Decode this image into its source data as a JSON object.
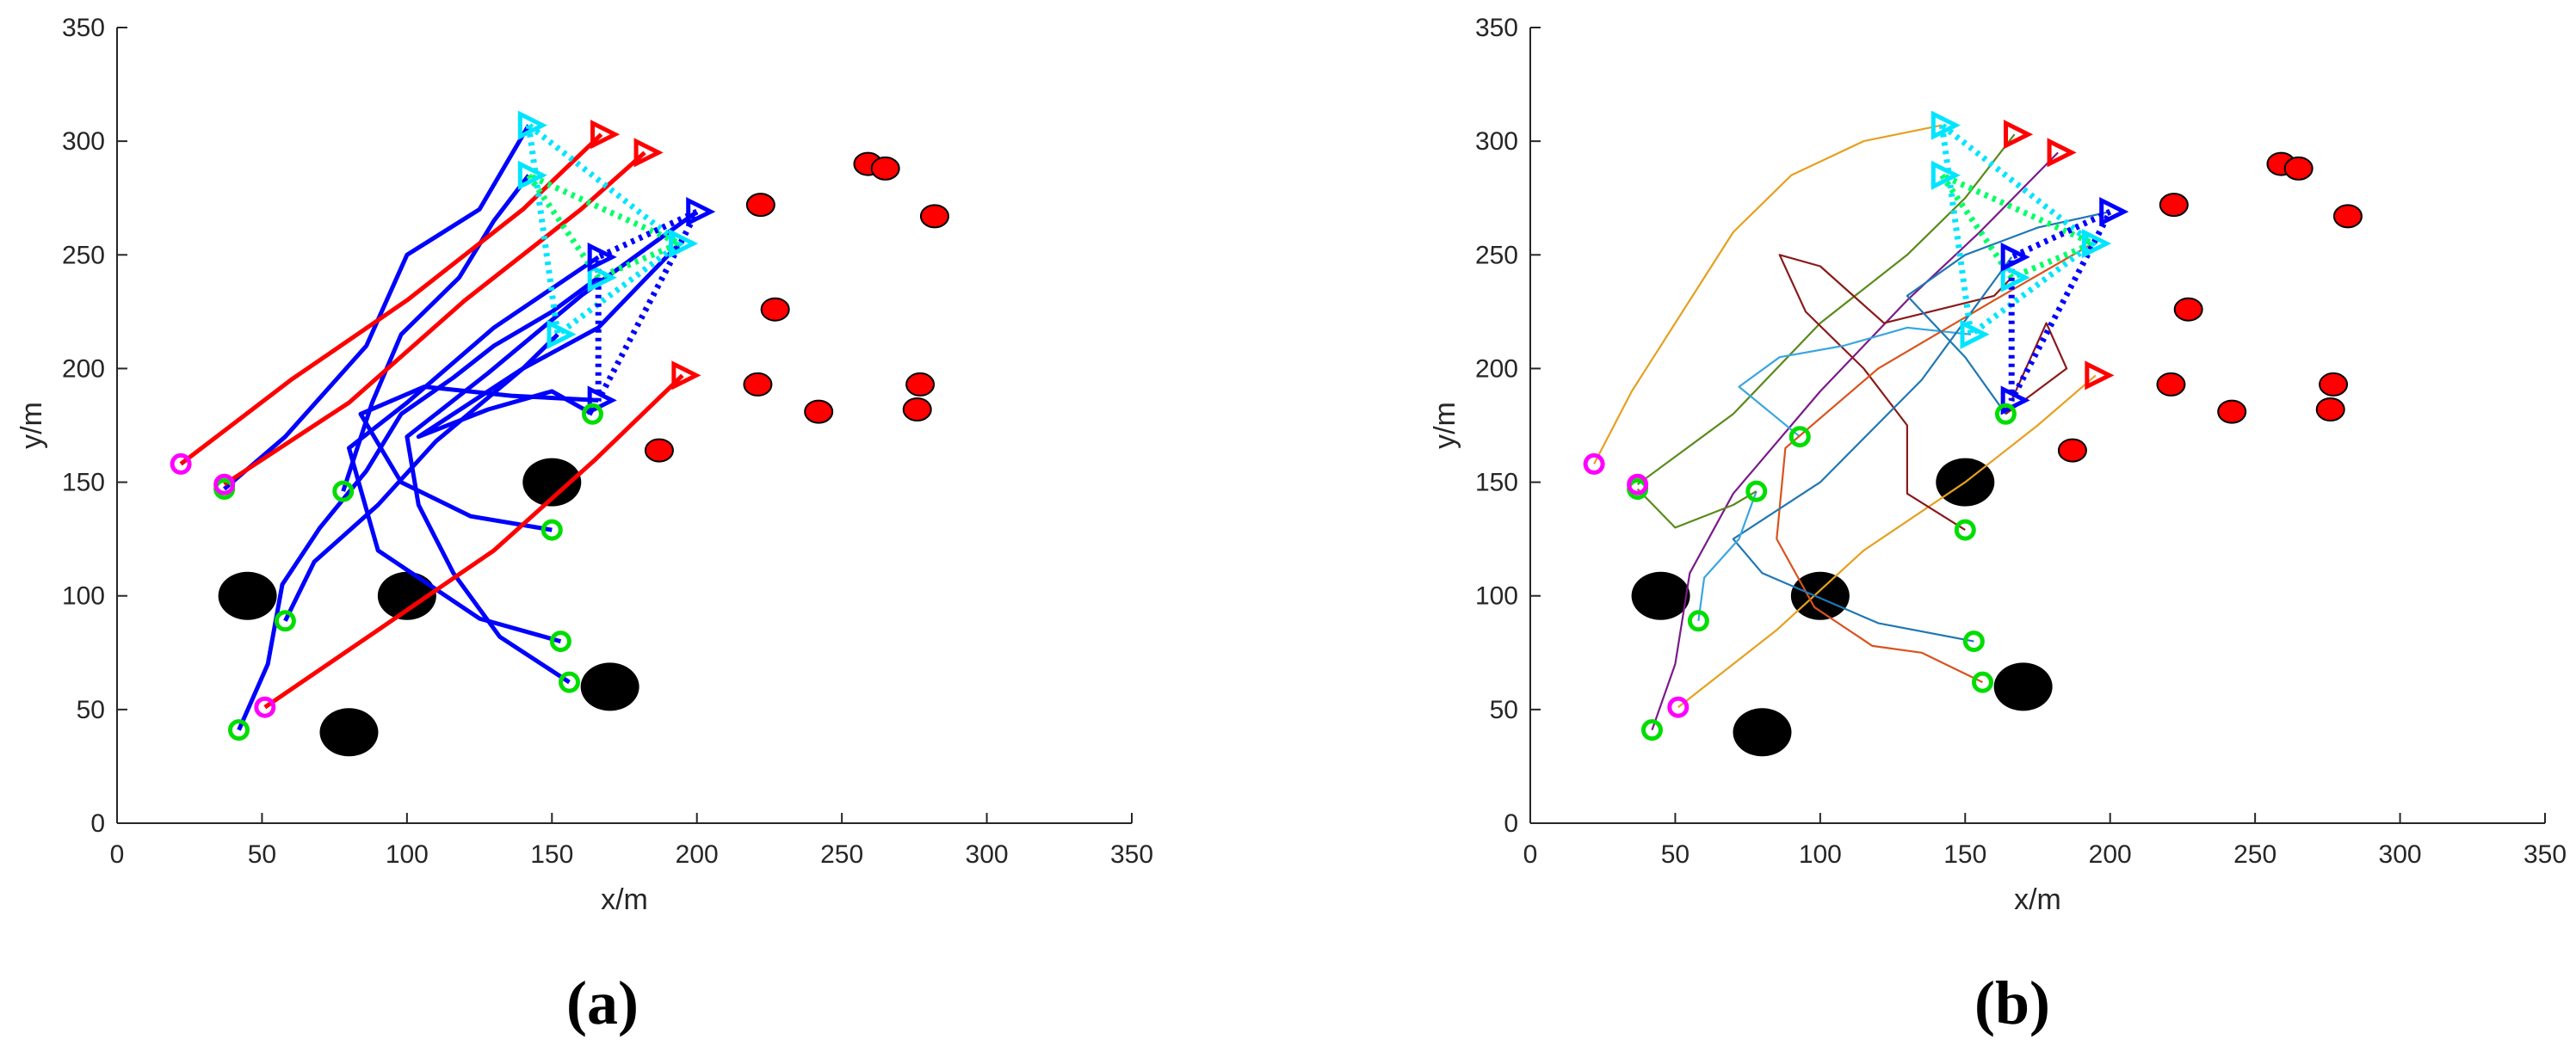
{
  "figure": {
    "panel_labels": [
      "(a)",
      "(b)"
    ]
  },
  "chart_data": [
    {
      "panel": "(a)",
      "type": "scatter",
      "xlabel": "x/m",
      "ylabel": "y/m",
      "xlim": [
        0,
        350
      ],
      "ylim": [
        0,
        350
      ],
      "xticks": [
        0,
        50,
        100,
        150,
        200,
        250,
        300,
        350
      ],
      "yticks": [
        0,
        50,
        100,
        150,
        200,
        250,
        300,
        350
      ],
      "grid": false,
      "colors": {
        "trajectory_primary": "#0000ff",
        "trajectory_secondary": "#ff0000",
        "formation_a": "#00e5ff",
        "formation_b": "#00ff66",
        "formation_c": "#0000ff",
        "start_green": "#00dd00",
        "start_magenta": "#ff00ff",
        "target": "#ff0000",
        "obstacle": "#000000"
      },
      "obstacles": [
        [
          45,
          100
        ],
        [
          100,
          100
        ],
        [
          150,
          150
        ],
        [
          170,
          60
        ],
        [
          80,
          40
        ]
      ],
      "targets": [
        [
          259,
          290
        ],
        [
          265,
          288
        ],
        [
          222,
          272
        ],
        [
          282,
          267
        ],
        [
          227,
          226
        ],
        [
          221,
          193
        ],
        [
          242,
          181
        ],
        [
          277,
          193
        ],
        [
          276,
          182
        ],
        [
          187,
          164
        ]
      ],
      "starts_green": [
        [
          37,
          147
        ],
        [
          78,
          146
        ],
        [
          164,
          180
        ],
        [
          150,
          129
        ],
        [
          58,
          89
        ],
        [
          153,
          80
        ],
        [
          156,
          62
        ],
        [
          42,
          41
        ]
      ],
      "starts_magenta": [
        [
          22,
          158
        ],
        [
          37,
          149
        ],
        [
          51,
          51
        ]
      ],
      "goals_red": [
        [
          167,
          303
        ],
        [
          182,
          295
        ],
        [
          195,
          197
        ]
      ],
      "goals_cyan": [
        [
          142,
          307
        ],
        [
          142,
          285
        ],
        [
          152,
          215
        ],
        [
          194,
          255
        ],
        [
          166,
          240
        ]
      ],
      "goals_blue": [
        [
          200,
          269
        ],
        [
          166,
          249
        ],
        [
          166,
          186
        ]
      ],
      "formations": [
        {
          "style": "cyan",
          "points": [
            [
              142,
              307
            ],
            [
              152,
              215
            ],
            [
              194,
              255
            ]
          ]
        },
        {
          "style": "green",
          "points": [
            [
              142,
              285
            ],
            [
              166,
              240
            ],
            [
              194,
              255
            ]
          ]
        },
        {
          "style": "blue",
          "points": [
            [
              200,
              269
            ],
            [
              166,
              249
            ],
            [
              166,
              186
            ]
          ]
        }
      ],
      "trajectories_primary": [
        [
          [
            42,
            41
          ],
          [
            52,
            70
          ],
          [
            57,
            105
          ],
          [
            70,
            130
          ],
          [
            86,
            155
          ],
          [
            98,
            180
          ],
          [
            116,
            196
          ],
          [
            130,
            210
          ],
          [
            150,
            225
          ],
          [
            166,
            240
          ]
        ],
        [
          [
            37,
            147
          ],
          [
            58,
            170
          ],
          [
            86,
            210
          ],
          [
            100,
            250
          ],
          [
            125,
            270
          ],
          [
            142,
            307
          ]
        ],
        [
          [
            78,
            146
          ],
          [
            88,
            185
          ],
          [
            98,
            215
          ],
          [
            118,
            240
          ],
          [
            130,
            265
          ],
          [
            142,
            285
          ]
        ],
        [
          [
            58,
            89
          ],
          [
            68,
            115
          ],
          [
            90,
            140
          ],
          [
            110,
            168
          ],
          [
            140,
            200
          ],
          [
            166,
            218
          ],
          [
            194,
            255
          ]
        ],
        [
          [
            153,
            80
          ],
          [
            125,
            90
          ],
          [
            90,
            120
          ],
          [
            80,
            165
          ],
          [
            100,
            185
          ],
          [
            130,
            218
          ],
          [
            166,
            249
          ]
        ],
        [
          [
            156,
            62
          ],
          [
            132,
            82
          ],
          [
            116,
            110
          ],
          [
            104,
            140
          ],
          [
            100,
            170
          ],
          [
            128,
            198
          ],
          [
            160,
            232
          ],
          [
            200,
            269
          ]
        ],
        [
          [
            150,
            129
          ],
          [
            122,
            135
          ],
          [
            98,
            150
          ],
          [
            84,
            180
          ],
          [
            106,
            192
          ],
          [
            136,
            188
          ],
          [
            166,
            186
          ]
        ],
        [
          [
            164,
            180
          ],
          [
            150,
            190
          ],
          [
            128,
            182
          ],
          [
            104,
            170
          ],
          [
            140,
            200
          ],
          [
            152,
            215
          ]
        ]
      ],
      "trajectories_secondary": [
        [
          [
            22,
            158
          ],
          [
            60,
            195
          ],
          [
            100,
            230
          ],
          [
            140,
            270
          ],
          [
            167,
            303
          ]
        ],
        [
          [
            37,
            149
          ],
          [
            80,
            185
          ],
          [
            120,
            230
          ],
          [
            160,
            270
          ],
          [
            182,
            295
          ]
        ],
        [
          [
            51,
            51
          ],
          [
            90,
            85
          ],
          [
            130,
            120
          ],
          [
            165,
            160
          ],
          [
            195,
            197
          ]
        ]
      ]
    },
    {
      "panel": "(b)",
      "type": "scatter",
      "xlabel": "x/m",
      "ylabel": "y/m",
      "xlim": [
        0,
        350
      ],
      "ylim": [
        0,
        350
      ],
      "xticks": [
        0,
        50,
        100,
        150,
        200,
        250,
        300,
        350
      ],
      "yticks": [
        0,
        50,
        100,
        150,
        200,
        250,
        300,
        350
      ],
      "grid": false,
      "colors": {
        "formation_a": "#00e5ff",
        "formation_b": "#00ff66",
        "formation_c": "#0000ff",
        "start_green": "#00dd00",
        "start_magenta": "#ff00ff",
        "target": "#ff0000",
        "obstacle": "#000000"
      },
      "obstacles": [
        [
          45,
          100
        ],
        [
          100,
          100
        ],
        [
          150,
          150
        ],
        [
          170,
          60
        ],
        [
          80,
          40
        ]
      ],
      "targets": [
        [
          259,
          290
        ],
        [
          265,
          288
        ],
        [
          222,
          272
        ],
        [
          282,
          267
        ],
        [
          227,
          226
        ],
        [
          221,
          193
        ],
        [
          242,
          181
        ],
        [
          277,
          193
        ],
        [
          276,
          182
        ],
        [
          187,
          164
        ]
      ],
      "starts_green": [
        [
          37,
          147
        ],
        [
          78,
          146
        ],
        [
          164,
          180
        ],
        [
          150,
          129
        ],
        [
          58,
          89
        ],
        [
          153,
          80
        ],
        [
          156,
          62
        ],
        [
          42,
          41
        ],
        [
          93,
          170
        ]
      ],
      "starts_magenta": [
        [
          22,
          158
        ],
        [
          37,
          149
        ],
        [
          51,
          51
        ]
      ],
      "goals_red": [
        [
          167,
          303
        ],
        [
          182,
          295
        ],
        [
          195,
          197
        ]
      ],
      "goals_cyan": [
        [
          142,
          307
        ],
        [
          142,
          285
        ],
        [
          152,
          215
        ],
        [
          194,
          255
        ],
        [
          166,
          240
        ]
      ],
      "goals_blue": [
        [
          200,
          269
        ],
        [
          166,
          249
        ],
        [
          166,
          186
        ]
      ],
      "formations": [
        {
          "style": "cyan",
          "points": [
            [
              142,
              307
            ],
            [
              152,
              215
            ],
            [
              194,
              255
            ]
          ]
        },
        {
          "style": "green",
          "points": [
            [
              142,
              285
            ],
            [
              166,
              240
            ],
            [
              194,
              255
            ]
          ]
        },
        {
          "style": "blue",
          "points": [
            [
              200,
              269
            ],
            [
              166,
              249
            ],
            [
              166,
              186
            ]
          ]
        }
      ],
      "trajectories": [
        {
          "color": "#e6a020",
          "points": [
            [
              22,
              158
            ],
            [
              35,
              190
            ],
            [
              55,
              230
            ],
            [
              70,
              260
            ],
            [
              90,
              285
            ],
            [
              115,
              300
            ],
            [
              142,
              307
            ]
          ]
        },
        {
          "color": "#5a8a1a",
          "points": [
            [
              37,
              149
            ],
            [
              70,
              180
            ],
            [
              100,
              220
            ],
            [
              130,
              250
            ],
            [
              150,
              275
            ],
            [
              167,
              303
            ]
          ]
        },
        {
          "color": "#7a1a8a",
          "points": [
            [
              42,
              41
            ],
            [
              50,
              70
            ],
            [
              55,
              110
            ],
            [
              70,
              145
            ],
            [
              100,
              190
            ],
            [
              130,
              230
            ],
            [
              155,
              260
            ],
            [
              182,
              295
            ]
          ]
        },
        {
          "color": "#e6a020",
          "points": [
            [
              51,
              51
            ],
            [
              85,
              85
            ],
            [
              115,
              120
            ],
            [
              150,
              150
            ],
            [
              175,
              175
            ],
            [
              195,
              197
            ]
          ]
        },
        {
          "color": "#8a1a1a",
          "points": [
            [
              150,
              129
            ],
            [
              130,
              145
            ],
            [
              130,
              175
            ],
            [
              115,
              200
            ],
            [
              95,
              225
            ],
            [
              86,
              250
            ],
            [
              100,
              245
            ],
            [
              122,
              220
            ],
            [
              160,
              232
            ],
            [
              166,
              240
            ]
          ]
        },
        {
          "color": "#3aa6e0",
          "points": [
            [
              93,
              170
            ],
            [
              72,
              192
            ],
            [
              86,
              205
            ],
            [
              108,
              210
            ],
            [
              130,
              218
            ],
            [
              152,
              215
            ]
          ]
        },
        {
          "color": "#d9531e",
          "points": [
            [
              156,
              62
            ],
            [
              135,
              75
            ],
            [
              118,
              78
            ],
            [
              98,
              95
            ],
            [
              85,
              125
            ],
            [
              88,
              165
            ],
            [
              120,
              200
            ],
            [
              160,
              230
            ],
            [
              194,
              255
            ]
          ]
        },
        {
          "color": "#1f77b4",
          "points": [
            [
              153,
              80
            ],
            [
              120,
              88
            ],
            [
              80,
              110
            ],
            [
              70,
              125
            ],
            [
              100,
              150
            ],
            [
              135,
              195
            ],
            [
              166,
              249
            ]
          ]
        },
        {
          "color": "#1f77b4",
          "points": [
            [
              164,
              180
            ],
            [
              150,
              205
            ],
            [
              130,
              232
            ],
            [
              150,
              250
            ],
            [
              175,
              262
            ],
            [
              200,
              269
            ]
          ]
        },
        {
          "color": "#3aa6e0",
          "points": [
            [
              78,
              146
            ],
            [
              72,
              125
            ],
            [
              60,
              108
            ],
            [
              58,
              89
            ]
          ]
        },
        {
          "color": "#5a8a1a",
          "points": [
            [
              37,
              147
            ],
            [
              50,
              130
            ],
            [
              70,
              140
            ],
            [
              78,
              146
            ]
          ]
        },
        {
          "color": "#8a1a1a",
          "points": [
            [
              164,
              180
            ],
            [
              185,
              200
            ],
            [
              178,
              220
            ],
            [
              166,
              186
            ]
          ]
        }
      ]
    }
  ]
}
